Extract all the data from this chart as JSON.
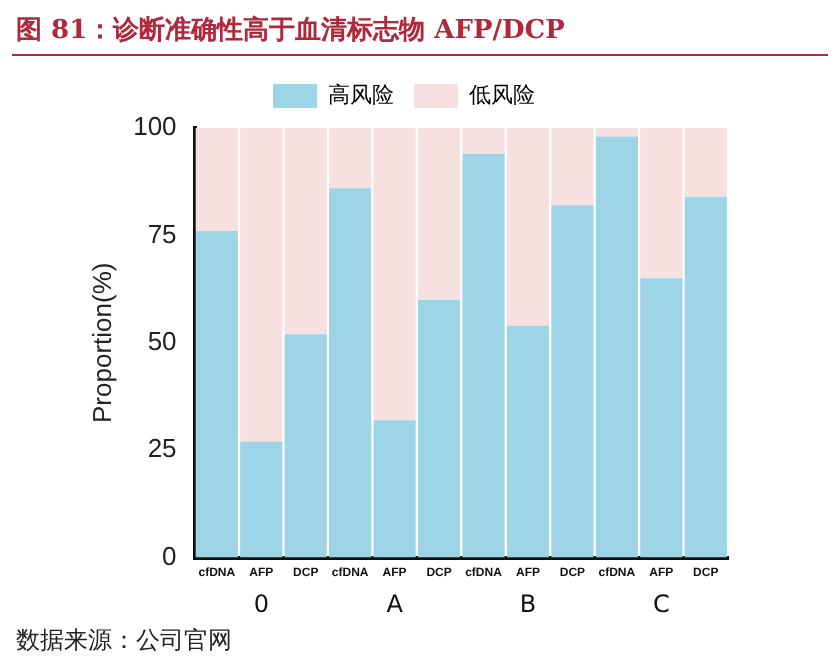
{
  "chart_data": {
    "type": "bar",
    "stacked": true,
    "title": "图 81：诊断准确性高于血清标志物 AFP/DCP",
    "ylabel": "Proportion(%)",
    "categories": [
      "cfDNA",
      "AFP",
      "DCP",
      "cfDNA",
      "AFP",
      "DCP",
      "cfDNA",
      "AFP",
      "DCP",
      "cfDNA",
      "AFP",
      "DCP"
    ],
    "series": [
      {
        "name": "高风险",
        "color": "#9dd5e6",
        "values": [
          76,
          27,
          52,
          86,
          32,
          60,
          94,
          54,
          82,
          98,
          65,
          84
        ]
      },
      {
        "name": "低风险",
        "color": "#f6e0e0",
        "values": [
          24,
          73,
          48,
          14,
          68,
          40,
          6,
          46,
          18,
          2,
          35,
          16
        ]
      }
    ],
    "ylim": [
      0,
      100
    ],
    "yticks": [
      0,
      25,
      50,
      75,
      100
    ],
    "grid": false,
    "legend": "top",
    "annotations": [
      "0",
      "A",
      "B",
      "C",
      "数据来源：公司官网"
    ]
  }
}
